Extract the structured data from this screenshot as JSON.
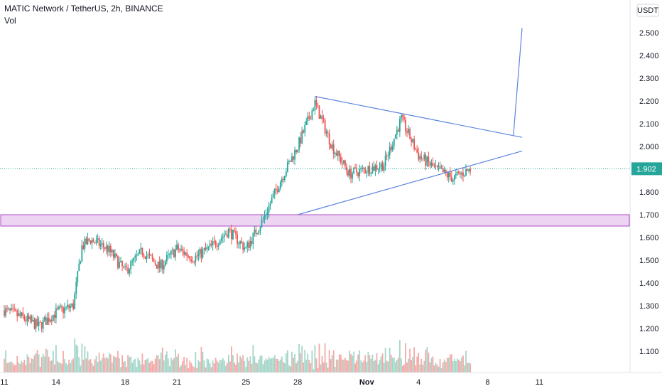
{
  "header": {
    "title": "MATIC Network / TetherUS, 2h, BINANCE",
    "indicator": "Vol"
  },
  "currency_badge": "USDT",
  "colors": {
    "up": "#26a69a",
    "down": "#ef5350",
    "up_vol": "#a5d6c9",
    "down_vol": "#f5a9a7",
    "trendline": "#5b84e0",
    "zone_fill": "#ecd4f2",
    "zone_border": "#b04ac6",
    "price_line": "#26a69a",
    "price_badge": "#26a69a"
  },
  "chart_data": {
    "type": "candlestick",
    "symbol": "MATIC/USDT",
    "interval": "2h",
    "exchange": "BINANCE",
    "last_price": "1.902",
    "y_ticks": [
      "2.500",
      "2.400",
      "2.300",
      "2.200",
      "2.100",
      "2.000",
      "1.900",
      "1.800",
      "1.700",
      "1.600",
      "1.500",
      "1.400",
      "1.300",
      "1.200",
      "1.100"
    ],
    "ylim": [
      1.0,
      2.58
    ],
    "x_ticks": [
      "11",
      "14",
      "18",
      "21",
      "25",
      "28",
      "Nov",
      "4",
      "8",
      "11"
    ],
    "x_tick_dates": [
      "Oct 11",
      "Oct 14",
      "Oct 18",
      "Oct 21",
      "Oct 25",
      "Oct 28",
      "Nov 1",
      "Nov 4",
      "Nov 8",
      "Nov 11"
    ],
    "price_path": [
      [
        "Oct 11",
        1.28
      ],
      [
        "Oct 12",
        1.25
      ],
      [
        "Oct 13",
        1.21
      ],
      [
        "Oct 14",
        1.27
      ],
      [
        "Oct 15",
        1.3
      ],
      [
        "Oct 15 12h",
        1.56
      ],
      [
        "Oct 16",
        1.59
      ],
      [
        "Oct 17",
        1.55
      ],
      [
        "Oct 18",
        1.45
      ],
      [
        "Oct 19",
        1.54
      ],
      [
        "Oct 20",
        1.47
      ],
      [
        "Oct 21",
        1.55
      ],
      [
        "Oct 22",
        1.51
      ],
      [
        "Oct 23",
        1.56
      ],
      [
        "Oct 24",
        1.63
      ],
      [
        "Oct 25",
        1.55
      ],
      [
        "Oct 26",
        1.68
      ],
      [
        "Oct 27",
        1.85
      ],
      [
        "Oct 28",
        2.0
      ],
      [
        "Oct 29",
        2.19
      ],
      [
        "Oct 30",
        2.0
      ],
      [
        "Oct 31",
        1.88
      ],
      [
        "Nov 1",
        1.9
      ],
      [
        "Nov 2",
        1.92
      ],
      [
        "Nov 3",
        2.12
      ],
      [
        "Nov 4",
        1.96
      ],
      [
        "Nov 5",
        1.9
      ],
      [
        "Nov 6",
        1.86
      ],
      [
        "Nov 7",
        1.9
      ]
    ],
    "support_zone": [
      1.65,
      1.7
    ],
    "triangle": {
      "upper": [
        [
          "Oct 29",
          2.22
        ],
        [
          "Nov 10",
          2.04
        ]
      ],
      "lower": [
        [
          "Oct 28",
          1.7
        ],
        [
          "Nov 10",
          1.98
        ]
      ],
      "projection": [
        [
          "Nov 9 12h",
          2.05
        ],
        [
          "Nov 10",
          2.52
        ]
      ]
    },
    "volume_note": "Vol"
  }
}
